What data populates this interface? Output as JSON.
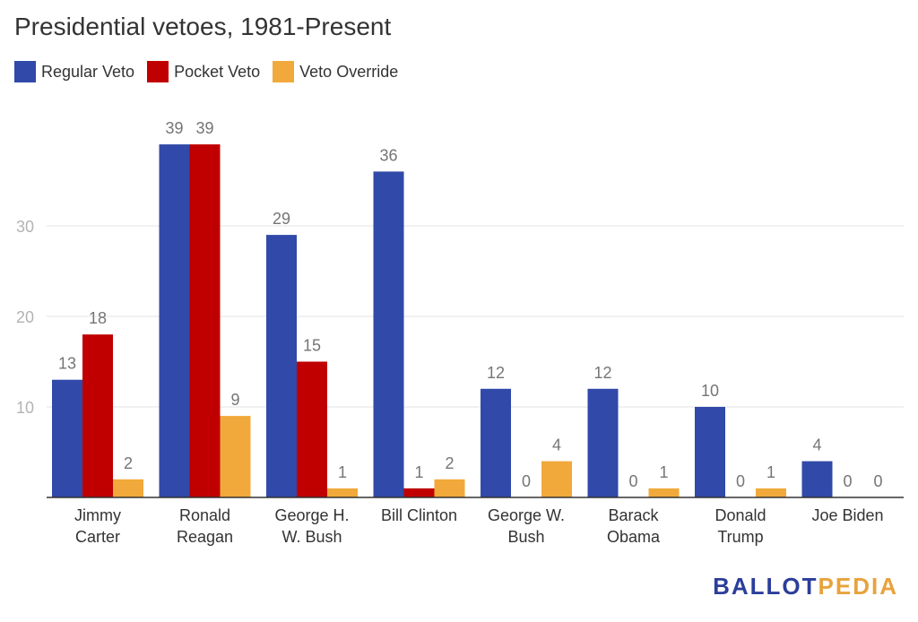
{
  "chart_data": {
    "type": "bar",
    "title": "Presidential vetoes, 1981-Present",
    "categories": [
      [
        "Jimmy",
        "Carter"
      ],
      [
        "Ronald",
        "Reagan"
      ],
      [
        "George H.",
        "W. Bush"
      ],
      [
        "Bill Clinton"
      ],
      [
        "George W.",
        "Bush"
      ],
      [
        "Barack",
        "Obama"
      ],
      [
        "Donald",
        "Trump"
      ],
      [
        "Joe Biden"
      ]
    ],
    "series": [
      {
        "name": "Regular Veto",
        "color": "#3149a8",
        "values": [
          13,
          39,
          29,
          36,
          12,
          12,
          10,
          4
        ]
      },
      {
        "name": "Pocket Veto",
        "color": "#c00000",
        "values": [
          18,
          39,
          15,
          1,
          0,
          0,
          0,
          0
        ]
      },
      {
        "name": "Veto Override",
        "color": "#f2a93b",
        "values": [
          2,
          9,
          1,
          2,
          4,
          1,
          1,
          0
        ]
      }
    ],
    "yticks": [
      10,
      20,
      30
    ],
    "ylim": [
      0,
      39
    ],
    "grid": true,
    "legend_position": "top-left"
  },
  "logo": {
    "part1": "BALLOT",
    "part2": "PEDIA"
  }
}
